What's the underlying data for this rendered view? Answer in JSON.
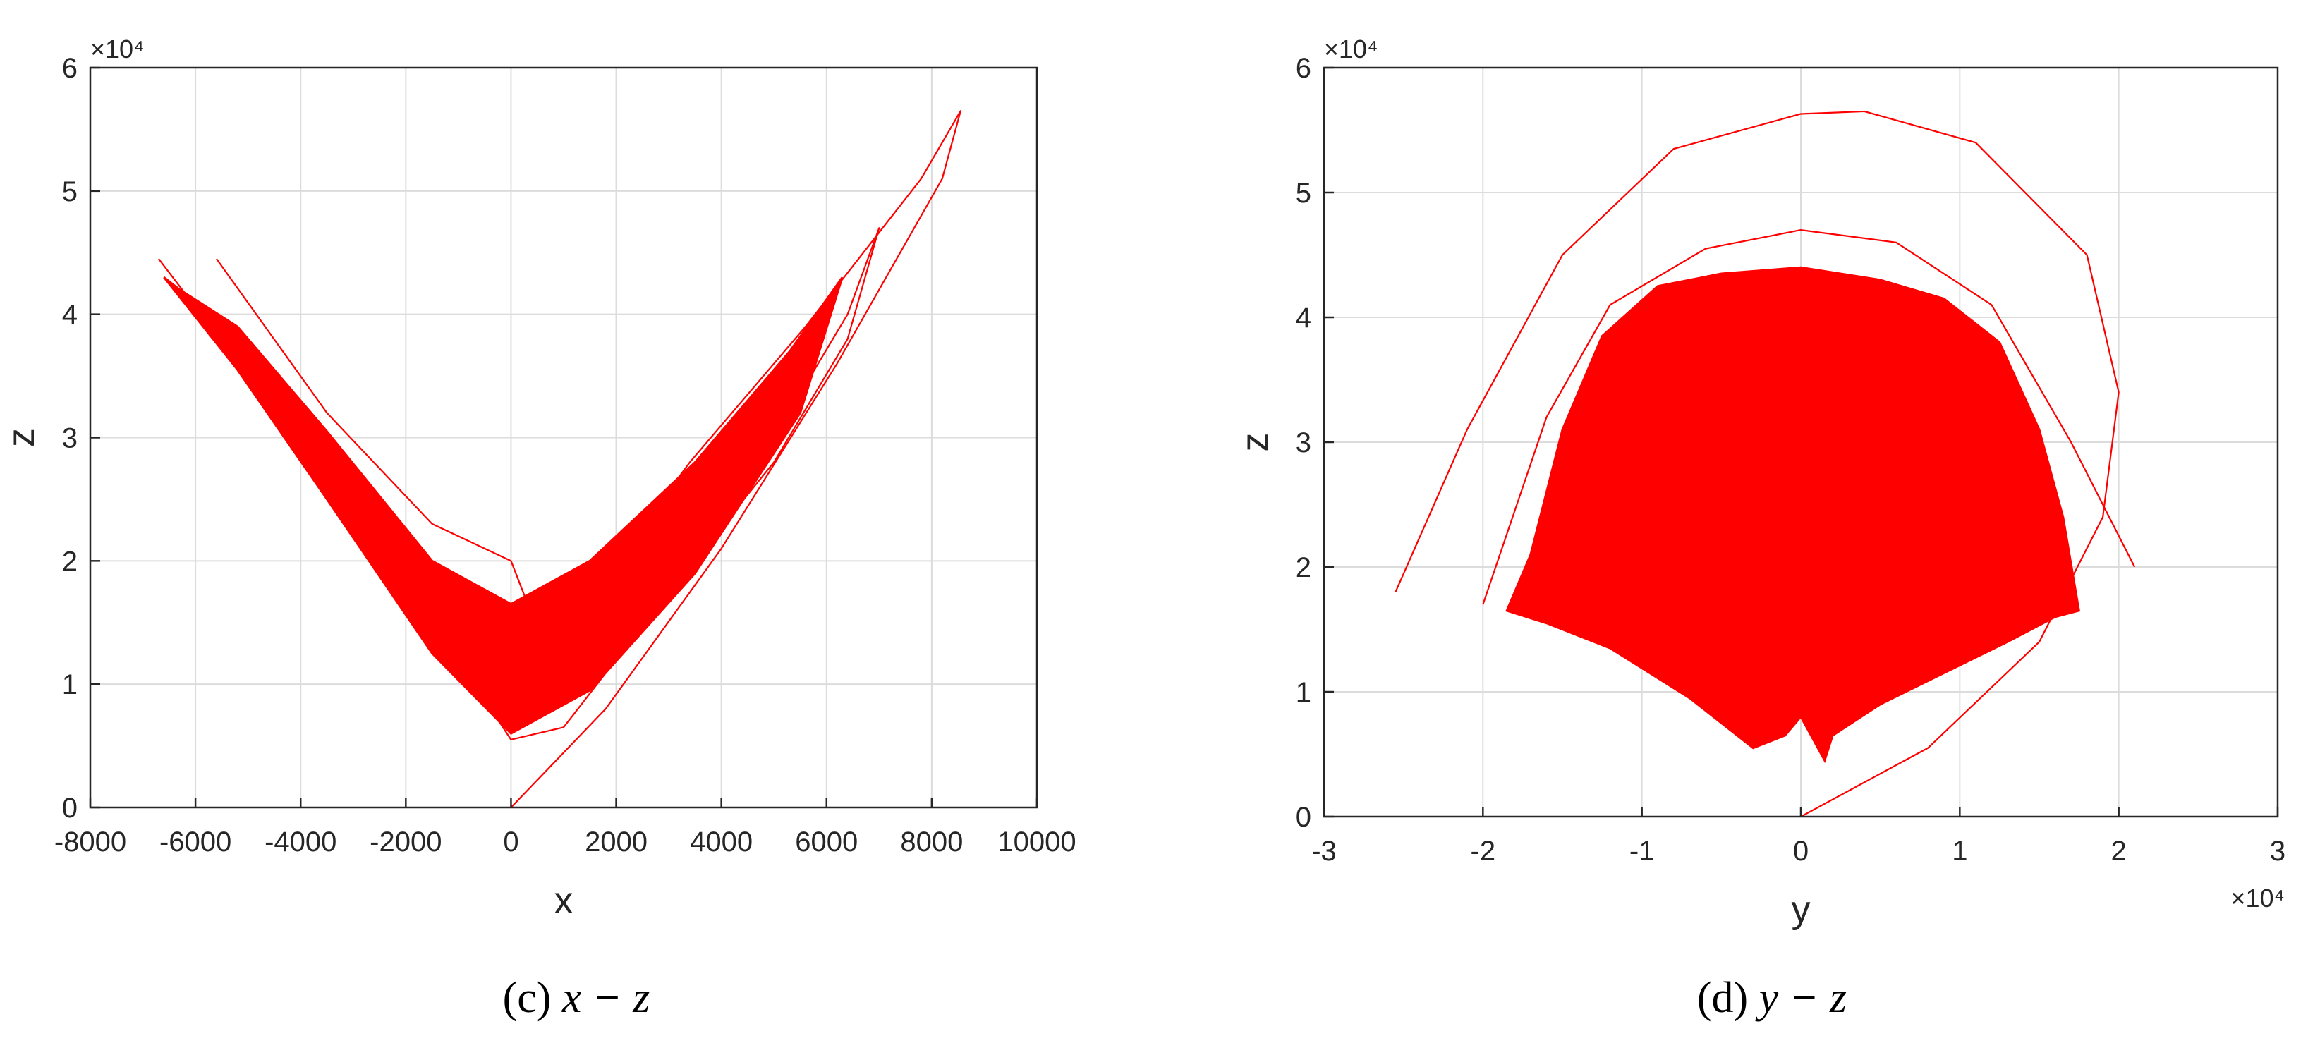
{
  "chart_data": [
    {
      "type": "line",
      "caption_label": "(c)",
      "caption_math": "x − z",
      "xlabel": "x",
      "ylabel": "z",
      "xlim": [
        -8000,
        10000
      ],
      "ylim": [
        0,
        60000
      ],
      "x_ticks": [
        -8000,
        -6000,
        -4000,
        -2000,
        0,
        2000,
        4000,
        6000,
        8000,
        10000
      ],
      "x_tick_labels": [
        "-8000",
        "-6000",
        "-4000",
        "-2000",
        "0",
        "2000",
        "4000",
        "6000",
        "8000",
        "10000"
      ],
      "y_ticks": [
        0,
        10000,
        20000,
        30000,
        40000,
        50000,
        60000
      ],
      "y_tick_labels": [
        "0",
        "1",
        "2",
        "3",
        "4",
        "5",
        "6"
      ],
      "y_exponent": "×10⁴",
      "grid": true,
      "line_color": "#ff0000",
      "series": [
        {
          "x": [
            0,
            1800,
            4000,
            6200,
            8200,
            8550,
            7800,
            5600,
            3400,
            1500,
            200,
            0
          ],
          "y": [
            0,
            8000,
            21000,
            36000,
            51000,
            56500,
            51000,
            39000,
            28000,
            17000,
            10500,
            7500
          ]
        },
        {
          "x": [
            -6700,
            -5000,
            -3000,
            -1000,
            0,
            1000,
            3000,
            5000,
            6400,
            7000,
            6400,
            5000,
            3000,
            1000,
            0,
            -1500,
            -3500,
            -5600
          ],
          "y": [
            44500,
            35000,
            23500,
            12000,
            5500,
            6500,
            17500,
            30000,
            40000,
            47000,
            38000,
            28000,
            17500,
            9000,
            20000,
            23000,
            32000,
            44500
          ]
        }
      ],
      "band": {
        "x": [
          -6600,
          -5200,
          -3500,
          -1500,
          0,
          1500,
          3500,
          5500,
          6300,
          5300,
          3500,
          1500,
          0,
          -1500,
          -3500,
          -5200,
          -6300
        ],
        "y": [
          43000,
          35500,
          25000,
          12500,
          6000,
          9500,
          19000,
          32000,
          43000,
          37000,
          28000,
          20000,
          16500,
          20000,
          30500,
          39000,
          42000
        ]
      }
    },
    {
      "type": "line",
      "caption_label": "(d)",
      "caption_math": "y − z",
      "xlabel": "y",
      "ylabel": "z",
      "xlim": [
        -30000,
        30000
      ],
      "ylim": [
        0,
        60000
      ],
      "x_ticks": [
        -30000,
        -20000,
        -10000,
        0,
        10000,
        20000,
        30000
      ],
      "x_tick_labels": [
        "-3",
        "-2",
        "-1",
        "0",
        "1",
        "2",
        "3"
      ],
      "x_exponent": "×10⁴",
      "y_ticks": [
        0,
        10000,
        20000,
        30000,
        40000,
        50000,
        60000
      ],
      "y_tick_labels": [
        "0",
        "1",
        "2",
        "3",
        "4",
        "5",
        "6"
      ],
      "y_exponent": "×10⁴",
      "grid": true,
      "line_color": "#ff0000",
      "series": [
        {
          "x": [
            -25500,
            -21000,
            -15000,
            -8000,
            0,
            4000,
            11000,
            18000,
            20000,
            19000,
            15000,
            8000,
            0
          ],
          "y": [
            18000,
            31000,
            45000,
            53500,
            56300,
            56500,
            54000,
            45000,
            34000,
            24000,
            14000,
            5500,
            0
          ]
        },
        {
          "x": [
            -20000,
            -16000,
            -12000,
            -6000,
            0,
            6000,
            12000,
            17000,
            21000
          ],
          "y": [
            17000,
            32000,
            41000,
            45500,
            47000,
            46000,
            41000,
            30000,
            20000
          ]
        }
      ],
      "band": {
        "x": [
          -18500,
          -17000,
          -15000,
          -12500,
          -9000,
          -5000,
          0,
          5000,
          9000,
          12500,
          15000,
          16500,
          17500,
          16000,
          13000,
          9000,
          5000,
          2000,
          1500,
          0,
          -1000,
          -3000,
          -7000,
          -12000,
          -16000
        ],
        "y": [
          16500,
          21000,
          31000,
          38500,
          42500,
          43500,
          44000,
          43000,
          41500,
          38000,
          31000,
          24000,
          16500,
          16000,
          14000,
          11500,
          9000,
          6500,
          4500,
          8000,
          6500,
          5500,
          9500,
          13500,
          15500
        ]
      }
    }
  ]
}
